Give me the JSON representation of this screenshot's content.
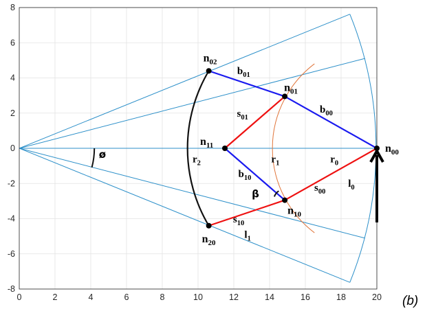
{
  "chart_data": {
    "type": "diagram",
    "xlim": [
      0,
      20
    ],
    "ylim": [
      -8,
      8
    ],
    "x_ticks": [
      0,
      2,
      4,
      6,
      8,
      10,
      12,
      14,
      16,
      18,
      20
    ],
    "y_ticks": [
      -8,
      -6,
      -4,
      -2,
      0,
      2,
      4,
      6,
      8
    ],
    "grid": true,
    "colors": {
      "sector": "#2b8fc9",
      "arc": "#e0753a",
      "blue_edge": "#1a1aef",
      "red_edge": "#ee1111",
      "black_arc": "#111111"
    },
    "nodes": [
      {
        "id": "n00",
        "base": "n",
        "sub": "00",
        "x": 20.0,
        "y": 0.0
      },
      {
        "id": "n01",
        "base": "n",
        "sub": "01",
        "x": 14.85,
        "y": 2.95
      },
      {
        "id": "n02",
        "base": "n",
        "sub": "02",
        "x": 10.6,
        "y": 4.4
      },
      {
        "id": "n11",
        "base": "n",
        "sub": "11",
        "x": 11.5,
        "y": 0.0
      },
      {
        "id": "n10",
        "base": "n",
        "sub": "10",
        "x": 14.85,
        "y": -2.95
      },
      {
        "id": "n20",
        "base": "n",
        "sub": "20",
        "x": 10.6,
        "y": -4.4
      }
    ],
    "edges": [
      {
        "from": "n02",
        "to": "n01",
        "color": "blue",
        "label": "b",
        "sub": "01"
      },
      {
        "from": "n01",
        "to": "n00",
        "color": "blue",
        "label": "b",
        "sub": "00"
      },
      {
        "from": "n11",
        "to": "n10",
        "color": "blue",
        "label": "b",
        "sub": "10"
      },
      {
        "from": "n11",
        "to": "n01",
        "color": "red",
        "label": "s",
        "sub": "01"
      },
      {
        "from": "n10",
        "to": "n00",
        "color": "red",
        "label": "s",
        "sub": "00"
      },
      {
        "from": "n20",
        "to": "n10",
        "color": "red",
        "label": "s",
        "sub": "10"
      }
    ],
    "axis_labels": [
      {
        "base": "r",
        "sub": "2",
        "x": 10.0,
        "y": -0.4
      },
      {
        "base": "r",
        "sub": "1",
        "x": 14.4,
        "y": -0.4
      },
      {
        "base": "r",
        "sub": "0",
        "x": 17.7,
        "y": -0.4
      },
      {
        "base": "l",
        "sub": "0",
        "x": 18.7,
        "y": -1.8
      },
      {
        "base": "l",
        "sub": "1",
        "x": 12.9,
        "y": -4.7
      }
    ],
    "angle_symbols": {
      "phi": "ø",
      "beta": "β"
    },
    "panel_label": "(b)"
  }
}
